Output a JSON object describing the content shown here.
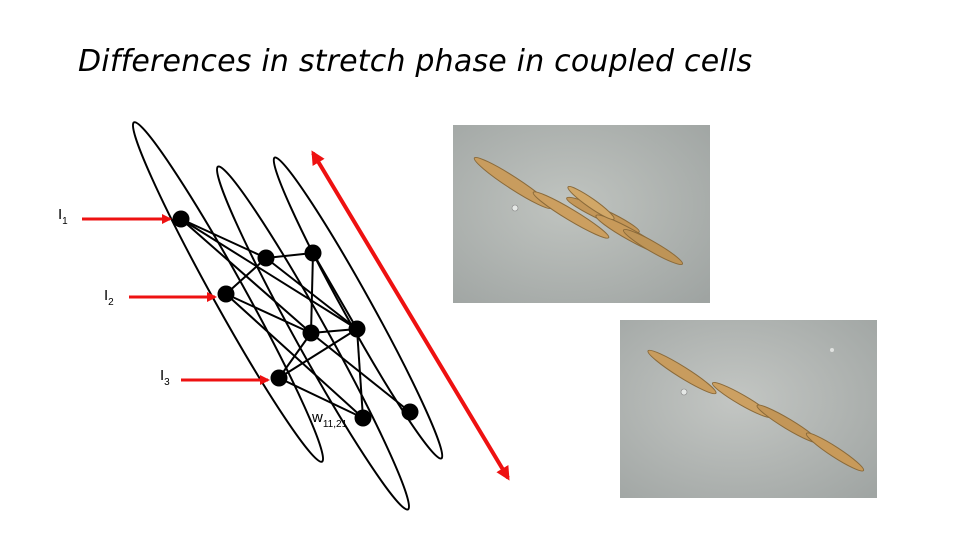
{
  "title": "Differences in stretch phase in coupled cells",
  "inputs": [
    {
      "base": "I",
      "sub": "1"
    },
    {
      "base": "I",
      "sub": "2"
    },
    {
      "base": "I",
      "sub": "3"
    }
  ],
  "weight_label": {
    "base": "w",
    "sub": "11,21"
  },
  "colors": {
    "arrow": "#ee1111",
    "node": "#000000",
    "text": "#000000",
    "background": "#ffffff",
    "photo_bg": "#b0b4b0",
    "cell_body": "#c49a5c"
  },
  "photos": [
    {
      "name": "coupled-diatom-cells-stretched-photo"
    },
    {
      "name": "coupled-diatom-cells-photo"
    }
  ]
}
